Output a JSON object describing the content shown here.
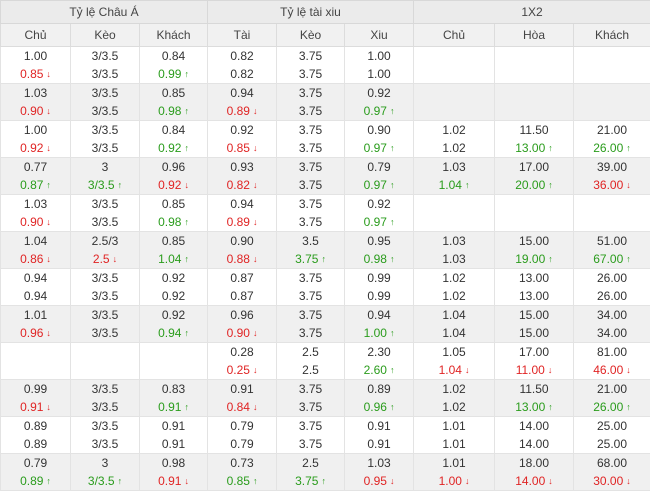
{
  "groups": [
    "Tỷ lệ Châu Á",
    "Tỷ lệ tài xiu",
    "1X2"
  ],
  "columns": [
    "Chủ",
    "Kèo",
    "Khách",
    "Tài",
    "Kèo",
    "Xiu",
    "Chủ",
    "Hòa",
    "Khách"
  ],
  "colors": {
    "up": "#2a9c1c",
    "down": "#e02424",
    "header_bg": "#ebebeb",
    "alt_row_bg": "#f0f0f0"
  },
  "rows": [
    [
      [
        "1.00|",
        "0.85|down"
      ],
      [
        "3/3.5|",
        "3/3.5|"
      ],
      [
        "0.84|",
        "0.99|up"
      ],
      [
        "0.82|",
        "0.82|"
      ],
      [
        "3.75|",
        "3.75|"
      ],
      [
        "1.00|",
        "1.00|"
      ],
      [],
      [],
      []
    ],
    [
      [
        "1.03|",
        "0.90|down"
      ],
      [
        "3/3.5|",
        "3/3.5|"
      ],
      [
        "0.85|",
        "0.98|up"
      ],
      [
        "0.94|",
        "0.89|down"
      ],
      [
        "3.75|",
        "3.75|"
      ],
      [
        "0.92|",
        "0.97|up"
      ],
      [],
      [],
      []
    ],
    [
      [
        "1.00|",
        "0.92|down"
      ],
      [
        "3/3.5|",
        "3/3.5|"
      ],
      [
        "0.84|",
        "0.92|up"
      ],
      [
        "0.92|",
        "0.85|down"
      ],
      [
        "3.75|",
        "3.75|"
      ],
      [
        "0.90|",
        "0.97|up"
      ],
      [
        "1.02|",
        "1.02|"
      ],
      [
        "11.50|",
        "13.00|up"
      ],
      [
        "21.00|",
        "26.00|up"
      ]
    ],
    [
      [
        "0.77|",
        "0.87|up"
      ],
      [
        "3|",
        "3/3.5|up"
      ],
      [
        "0.96|",
        "0.92|down"
      ],
      [
        "0.93|",
        "0.82|down"
      ],
      [
        "3.75|",
        "3.75|"
      ],
      [
        "0.79|",
        "0.97|up"
      ],
      [
        "1.03|",
        "1.04|up"
      ],
      [
        "17.00|",
        "20.00|up"
      ],
      [
        "39.00|",
        "36.00|down"
      ]
    ],
    [
      [
        "1.03|",
        "0.90|down"
      ],
      [
        "3/3.5|",
        "3/3.5|"
      ],
      [
        "0.85|",
        "0.98|up"
      ],
      [
        "0.94|",
        "0.89|down"
      ],
      [
        "3.75|",
        "3.75|"
      ],
      [
        "0.92|",
        "0.97|up"
      ],
      [],
      [],
      []
    ],
    [
      [
        "1.04|",
        "0.86|down"
      ],
      [
        "2.5/3|",
        "2.5|down"
      ],
      [
        "0.85|",
        "1.04|up"
      ],
      [
        "0.90|",
        "0.88|down"
      ],
      [
        "3.5|",
        "3.75|up"
      ],
      [
        "0.95|",
        "0.98|up"
      ],
      [
        "1.03|",
        "1.03|"
      ],
      [
        "15.00|",
        "19.00|up"
      ],
      [
        "51.00|",
        "67.00|up"
      ]
    ],
    [
      [
        "0.94|",
        "0.94|"
      ],
      [
        "3/3.5|",
        "3/3.5|"
      ],
      [
        "0.92|",
        "0.92|"
      ],
      [
        "0.87|",
        "0.87|"
      ],
      [
        "3.75|",
        "3.75|"
      ],
      [
        "0.99|",
        "0.99|"
      ],
      [
        "1.02|",
        "1.02|"
      ],
      [
        "13.00|",
        "13.00|"
      ],
      [
        "26.00|",
        "26.00|"
      ]
    ],
    [
      [
        "1.01|",
        "0.96|down"
      ],
      [
        "3/3.5|",
        "3/3.5|"
      ],
      [
        "0.92|",
        "0.94|up"
      ],
      [
        "0.96|",
        "0.90|down"
      ],
      [
        "3.75|",
        "3.75|"
      ],
      [
        "0.94|",
        "1.00|up"
      ],
      [
        "1.04|",
        "1.04|"
      ],
      [
        "15.00|",
        "15.00|"
      ],
      [
        "34.00|",
        "34.00|"
      ]
    ],
    [
      [],
      [],
      [],
      [
        "0.28|",
        "0.25|down"
      ],
      [
        "2.5|",
        "2.5|"
      ],
      [
        "2.30|",
        "2.60|up"
      ],
      [
        "1.05|",
        "1.04|down"
      ],
      [
        "17.00|",
        "11.00|down"
      ],
      [
        "81.00|",
        "46.00|down"
      ]
    ],
    [
      [
        "0.99|",
        "0.91|down"
      ],
      [
        "3/3.5|",
        "3/3.5|"
      ],
      [
        "0.83|",
        "0.91|up"
      ],
      [
        "0.91|",
        "0.84|down"
      ],
      [
        "3.75|",
        "3.75|"
      ],
      [
        "0.89|",
        "0.96|up"
      ],
      [
        "1.02|",
        "1.02|"
      ],
      [
        "11.50|",
        "13.00|up"
      ],
      [
        "21.00|",
        "26.00|up"
      ]
    ],
    [
      [
        "0.89|",
        "0.89|"
      ],
      [
        "3/3.5|",
        "3/3.5|"
      ],
      [
        "0.91|",
        "0.91|"
      ],
      [
        "0.79|",
        "0.79|"
      ],
      [
        "3.75|",
        "3.75|"
      ],
      [
        "0.91|",
        "0.91|"
      ],
      [
        "1.01|",
        "1.01|"
      ],
      [
        "14.00|",
        "14.00|"
      ],
      [
        "25.00|",
        "25.00|"
      ]
    ],
    [
      [
        "0.79|",
        "0.89|up"
      ],
      [
        "3|",
        "3/3.5|up"
      ],
      [
        "0.98|",
        "0.91|down"
      ],
      [
        "0.73|",
        "0.85|up"
      ],
      [
        "2.5|",
        "3.75|up"
      ],
      [
        "1.03|",
        "0.95|down"
      ],
      [
        "1.01|",
        "1.00|down"
      ],
      [
        "18.00|",
        "14.00|down"
      ],
      [
        "68.00|",
        "30.00|down"
      ]
    ]
  ]
}
